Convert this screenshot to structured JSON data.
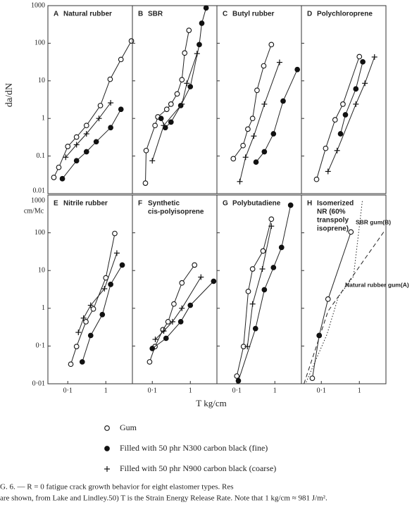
{
  "y_label": "da/dN",
  "y_unit": "cm/Mc",
  "x_label": "T kg/cm",
  "caption": [
    "G. 6. — R = 0 fatigue crack growth behavior for eight elastomer types. Res",
    "are shown, from Lake and Lindley.50) T is the Strain Energy Release Rate. Note that 1 kg/cm ≈ 981 J/m²."
  ],
  "legend": [
    {
      "marker": "open-circle",
      "label": "Gum"
    },
    {
      "marker": "filled-circle",
      "label": "Filled with 50 phr N300 carbon black (fine)"
    },
    {
      "marker": "plus",
      "label": "Filled with 50 phr N900 carbon black (coarse)"
    }
  ],
  "chart_data": [
    {
      "type": "line",
      "letter": "A",
      "title": [
        "Natural rubber"
      ],
      "log_x": true,
      "log_y": true,
      "xlim": [
        0.03,
        5
      ],
      "ylim": [
        0.01,
        1000
      ],
      "yticks": [
        1000,
        100,
        10,
        1,
        0.1,
        0.01
      ],
      "series": [
        {
          "marker": "open-circle",
          "x": [
            0.043,
            0.058,
            0.1,
            0.17,
            0.31,
            0.72,
            1.3,
            2.5,
            4.7
          ],
          "y": [
            0.027,
            0.05,
            0.18,
            0.32,
            0.65,
            2.2,
            11,
            37,
            115
          ]
        },
        {
          "marker": "filled-circle",
          "x": [
            0.072,
            0.17,
            0.31,
            0.56,
            1.34,
            2.5
          ],
          "y": [
            0.025,
            0.075,
            0.13,
            0.24,
            0.57,
            1.75
          ]
        },
        {
          "marker": "plus",
          "x": [
            0.088,
            0.17,
            0.31,
            0.66,
            1.34
          ],
          "y": [
            0.093,
            0.2,
            0.39,
            1,
            2.6
          ]
        }
      ]
    },
    {
      "type": "line",
      "letter": "B",
      "title": [
        "SBR"
      ],
      "log_x": true,
      "log_y": true,
      "xlim": [
        0.03,
        5
      ],
      "ylim": [
        0.01,
        1000
      ],
      "yticks": [
        1000,
        100,
        10,
        1,
        0.1,
        0.01
      ],
      "series": [
        {
          "marker": "open-circle",
          "x": [
            0.066,
            0.069,
            0.118,
            0.14,
            0.24,
            0.31,
            0.45,
            0.6,
            0.71,
            0.92
          ],
          "y": [
            0.019,
            0.14,
            0.65,
            1.1,
            1.75,
            2.4,
            4.5,
            10.7,
            55,
            220
          ]
        },
        {
          "marker": "filled-circle",
          "x": [
            0.17,
            0.22,
            0.31,
            0.56,
            1.0,
            1.72,
            2.0,
            2.6
          ],
          "y": [
            1,
            0.57,
            0.8,
            2.2,
            7,
            92,
            340,
            870
          ]
        },
        {
          "marker": "plus",
          "x": [
            0.1,
            0.2,
            0.6,
            0.81,
            1.5
          ],
          "y": [
            0.075,
            0.65,
            2.4,
            8.6,
            53
          ]
        }
      ]
    },
    {
      "type": "line",
      "letter": "C",
      "title": [
        "Butyl rubber"
      ],
      "log_x": true,
      "log_y": true,
      "xlim": [
        0.03,
        5
      ],
      "ylim": [
        0.01,
        1000
      ],
      "yticks": [
        1000,
        100,
        10,
        1,
        0.1,
        0.01
      ],
      "series": [
        {
          "marker": "open-circle",
          "x": [
            0.081,
            0.146,
            0.195,
            0.26,
            0.34,
            0.51,
            0.81
          ],
          "y": [
            0.085,
            0.19,
            0.52,
            1,
            5.6,
            25,
            92
          ]
        },
        {
          "marker": "filled-circle",
          "x": [
            0.32,
            0.53,
            0.92,
            1.65,
            3.9
          ],
          "y": [
            0.069,
            0.13,
            0.39,
            2.9,
            20
          ]
        },
        {
          "marker": "plus",
          "x": [
            0.12,
            0.17,
            0.28,
            0.53,
            1.33
          ],
          "y": [
            0.021,
            0.093,
            0.34,
            2.4,
            31
          ]
        }
      ]
    },
    {
      "type": "line",
      "letter": "D",
      "title": [
        "Polychloroprene"
      ],
      "log_x": true,
      "log_y": true,
      "xlim": [
        0.03,
        5
      ],
      "ylim": [
        0.01,
        1000
      ],
      "yticks": [
        1000,
        100,
        10,
        1,
        0.1,
        0.01
      ],
      "series": [
        {
          "marker": "open-circle",
          "x": [
            0.075,
            0.13,
            0.23,
            0.37,
            1.0
          ],
          "y": [
            0.024,
            0.16,
            0.92,
            2.4,
            44
          ]
        },
        {
          "marker": "filled-circle",
          "x": [
            0.32,
            0.43,
            0.81,
            1.23
          ],
          "y": [
            0.39,
            1.25,
            6.1,
            32
          ]
        },
        {
          "marker": "plus",
          "x": [
            0.15,
            0.26,
            0.81,
            1.4,
            2.5
          ],
          "y": [
            0.039,
            0.14,
            2.4,
            8.6,
            43
          ]
        }
      ]
    },
    {
      "type": "line",
      "letter": "E",
      "title": [
        "Nitrile rubber"
      ],
      "log_x": true,
      "log_y": true,
      "xlim": [
        0.03,
        5
      ],
      "ylim": [
        0.01,
        1000
      ],
      "yticks": [
        1000,
        100,
        10,
        1,
        {
          "value": 0.1,
          "label": "0·1"
        },
        {
          "value": 0.01,
          "label": "0·01"
        }
      ],
      "xticks": [
        {
          "value": 0.1,
          "label": "0·1"
        },
        1
      ],
      "series": [
        {
          "marker": "open-circle",
          "x": [
            0.12,
            0.17,
            0.3,
            0.47,
            1.0,
            1.72
          ],
          "y": [
            0.033,
            0.097,
            0.44,
            0.96,
            6.4,
            96
          ]
        },
        {
          "marker": "filled-circle",
          "x": [
            0.24,
            0.4,
            0.81,
            1.34,
            2.7
          ],
          "y": [
            0.038,
            0.19,
            0.68,
            4.3,
            14
          ]
        },
        {
          "marker": "plus",
          "x": [
            0.19,
            0.26,
            0.4,
            0.92,
            1.95
          ],
          "y": [
            0.23,
            0.55,
            1.2,
            3.3,
            29
          ]
        }
      ]
    },
    {
      "type": "line",
      "letter": "F",
      "title": [
        "Synthetic",
        "cis-polyisoprene"
      ],
      "log_x": true,
      "log_y": true,
      "xlim": [
        0.03,
        5
      ],
      "ylim": [
        0.01,
        1000
      ],
      "yticks": [
        1000,
        100,
        10,
        1,
        {
          "value": 0.1,
          "label": "0·1"
        },
        {
          "value": 0.01,
          "label": "0·01"
        }
      ],
      "xticks": [
        {
          "value": 0.1,
          "label": "0·1"
        },
        1
      ],
      "series": [
        {
          "marker": "open-circle",
          "x": [
            0.085,
            0.118,
            0.19,
            0.26,
            0.37,
            0.6,
            1.29
          ],
          "y": [
            0.038,
            0.097,
            0.27,
            0.44,
            1.3,
            4.7,
            14
          ]
        },
        {
          "marker": "filled-circle",
          "x": [
            0.1,
            0.23,
            0.56,
            1.0,
            4.1
          ],
          "y": [
            0.086,
            0.16,
            0.44,
            1.2,
            5.2
          ]
        },
        {
          "marker": "plus",
          "x": [
            0.12,
            0.2,
            0.34,
            0.6,
            1.9
          ],
          "y": [
            0.15,
            0.25,
            0.44,
            1.0,
            6.7
          ]
        }
      ]
    },
    {
      "type": "line",
      "letter": "G",
      "title": [
        "Polybutadiene"
      ],
      "log_x": true,
      "log_y": true,
      "xlim": [
        0.03,
        5
      ],
      "ylim": [
        0.01,
        1000
      ],
      "yticks": [
        1000,
        100,
        10,
        1,
        {
          "value": 0.1,
          "label": "0·1"
        },
        {
          "value": 0.01,
          "label": "0·01"
        }
      ],
      "xticks": [
        {
          "value": 0.1,
          "label": "0·1"
        },
        1
      ],
      "series": [
        {
          "marker": "open-circle",
          "x": [
            0.1,
            0.15,
            0.2,
            0.26,
            0.49,
            0.81
          ],
          "y": [
            0.016,
            0.097,
            2.8,
            11,
            33,
            230
          ]
        },
        {
          "marker": "filled-circle",
          "x": [
            0.11,
            0.31,
            0.53,
            0.92,
            1.5,
            2.6
          ],
          "y": [
            0.012,
            0.29,
            3.1,
            12,
            41,
            540
          ]
        },
        {
          "marker": "plus",
          "x": [
            0.19,
            0.26,
            0.47,
            0.81
          ],
          "y": [
            0.097,
            1.3,
            11,
            150
          ]
        }
      ]
    },
    {
      "type": "line",
      "letter": "H",
      "title": [
        "Isomerized",
        "NR (60%",
        "transpoly",
        "isoprene)"
      ],
      "log_x": true,
      "log_y": true,
      "xlim": [
        0.03,
        5
      ],
      "ylim": [
        0.01,
        1000
      ],
      "yticks": [
        1000,
        100,
        10,
        1,
        {
          "value": 0.1,
          "label": "0·1"
        },
        {
          "value": 0.01,
          "label": "0·01"
        }
      ],
      "xticks": [
        {
          "value": 0.1,
          "label": "0·1"
        },
        1
      ],
      "series": [
        {
          "marker": "open-circle",
          "x": [
            0.058,
            0.088,
            0.15,
            0.6
          ],
          "y": [
            0.014,
            0.19,
            1.75,
            105
          ]
        },
        {
          "marker": "filled-circle",
          "x": [
            0.088
          ],
          "y": [
            0.19
          ]
        },
        {
          "name": "SBR gum(B)",
          "line": "dotted",
          "x": [
            0.04,
            0.14,
            0.28,
            0.7,
            1.2
          ],
          "y": [
            0.011,
            0.2,
            2,
            7,
            700
          ]
        },
        {
          "name": "Natural rubber gum(A)",
          "line": "dashed",
          "x": [
            0.035,
            0.15,
            4.8
          ],
          "y": [
            0.01,
            0.84,
            120
          ]
        }
      ]
    }
  ]
}
